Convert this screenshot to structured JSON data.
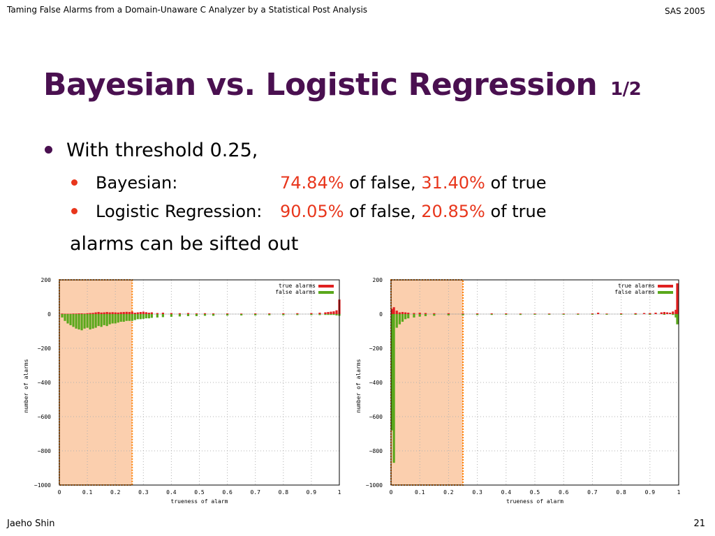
{
  "header": {
    "left": "Taming False Alarms from a Domain-Unaware C Analyzer by a Statistical Post Analysis",
    "right": "SAS 2005"
  },
  "title": {
    "main": "Bayesian vs. Logistic Regression",
    "sub": "1/2"
  },
  "bullets": {
    "main": "With threshold 0.25,",
    "items": [
      {
        "label": "Bayesian:",
        "false_pct": "74.84%",
        "mid": "of false,",
        "true_pct": "31.40%",
        "end": "of true"
      },
      {
        "label": "Logistic Regression:",
        "false_pct": "90.05%",
        "mid": "of false,",
        "true_pct": "20.85%",
        "end": "of true"
      }
    ],
    "tail": "alarms can be sifted out"
  },
  "footer": {
    "left": "Jaeho Shin",
    "right": "21"
  },
  "colors": {
    "title": "#4a1050",
    "accent": "#e8361c",
    "true_bar": "#e02020",
    "false_bar": "#5aa81c",
    "highlight": "#fbcfae",
    "highlight_border": "#ff7f00"
  },
  "chart_data": [
    {
      "type": "bar",
      "xlabel": "trueness of alarm",
      "ylabel": "number of alarms",
      "xlim": [
        0,
        1
      ],
      "ylim": [
        -1000,
        200
      ],
      "xticks": [
        "0",
        "0.1",
        "0.2",
        "0.3",
        "0.4",
        "0.5",
        "0.6",
        "0.7",
        "0.8",
        "0.9",
        "1"
      ],
      "yticks": [
        "200",
        "0",
        "−200",
        "−400",
        "−600",
        "−800",
        "−1000"
      ],
      "highlight_range": [
        0,
        0.26
      ],
      "grid": true,
      "legend": "top-right",
      "series": [
        {
          "name": "true alarms",
          "x": [
            0.01,
            0.02,
            0.03,
            0.04,
            0.05,
            0.06,
            0.07,
            0.08,
            0.09,
            0.1,
            0.11,
            0.12,
            0.13,
            0.14,
            0.15,
            0.16,
            0.17,
            0.18,
            0.19,
            0.2,
            0.21,
            0.22,
            0.23,
            0.24,
            0.25,
            0.26,
            0.27,
            0.28,
            0.29,
            0.3,
            0.31,
            0.32,
            0.33,
            0.35,
            0.37,
            0.4,
            0.43,
            0.46,
            0.49,
            0.52,
            0.55,
            0.6,
            0.65,
            0.7,
            0.75,
            0.8,
            0.85,
            0.9,
            0.93,
            0.95,
            0.96,
            0.97,
            0.98,
            0.99,
            1.0
          ],
          "values": [
            3,
            2,
            2,
            2,
            3,
            3,
            4,
            4,
            3,
            5,
            6,
            7,
            10,
            12,
            9,
            10,
            12,
            10,
            11,
            10,
            9,
            11,
            12,
            13,
            12,
            14,
            8,
            10,
            12,
            14,
            11,
            8,
            10,
            6,
            8,
            6,
            5,
            6,
            4,
            5,
            4,
            4,
            3,
            4,
            4,
            5,
            5,
            6,
            8,
            10,
            12,
            14,
            16,
            22,
            85
          ]
        },
        {
          "name": "false alarms",
          "x": [
            0.01,
            0.02,
            0.03,
            0.04,
            0.05,
            0.06,
            0.07,
            0.08,
            0.09,
            0.1,
            0.11,
            0.12,
            0.13,
            0.14,
            0.15,
            0.16,
            0.17,
            0.18,
            0.19,
            0.2,
            0.21,
            0.22,
            0.23,
            0.24,
            0.25,
            0.26,
            0.27,
            0.28,
            0.29,
            0.3,
            0.31,
            0.32,
            0.33,
            0.35,
            0.37,
            0.4,
            0.43,
            0.46,
            0.49,
            0.52,
            0.55,
            0.6,
            0.65,
            0.7,
            0.75,
            0.8,
            0.85,
            0.9,
            0.93,
            0.95,
            0.96,
            0.97,
            0.98,
            0.99,
            1.0
          ],
          "values": [
            -20,
            -40,
            -55,
            -65,
            -75,
            -85,
            -90,
            -95,
            -85,
            -80,
            -90,
            -85,
            -80,
            -70,
            -75,
            -65,
            -70,
            -60,
            -55,
            -55,
            -50,
            -45,
            -45,
            -40,
            -40,
            -40,
            -35,
            -30,
            -30,
            -28,
            -25,
            -25,
            -22,
            -20,
            -18,
            -16,
            -14,
            -12,
            -12,
            -10,
            -10,
            -9,
            -8,
            -8,
            -7,
            -7,
            -6,
            -6,
            -6,
            -5,
            -5,
            -5,
            -5,
            -8,
            -10
          ]
        }
      ]
    },
    {
      "type": "bar",
      "xlabel": "trueness of alarm",
      "ylabel": "number of alarms",
      "xlim": [
        0,
        1
      ],
      "ylim": [
        -1000,
        200
      ],
      "xticks": [
        "0",
        "0.1",
        "0.2",
        "0.3",
        "0.4",
        "0.5",
        "0.6",
        "0.7",
        "0.8",
        "0.9",
        "1"
      ],
      "yticks": [
        "200",
        "0",
        "−200",
        "−400",
        "−600",
        "−800",
        "−1000"
      ],
      "highlight_range": [
        0,
        0.25
      ],
      "grid": true,
      "legend": "top-right",
      "series": [
        {
          "name": "true alarms",
          "x": [
            0.005,
            0.01,
            0.02,
            0.03,
            0.04,
            0.05,
            0.06,
            0.08,
            0.1,
            0.12,
            0.15,
            0.2,
            0.25,
            0.3,
            0.35,
            0.4,
            0.45,
            0.5,
            0.55,
            0.6,
            0.65,
            0.7,
            0.72,
            0.75,
            0.8,
            0.85,
            0.88,
            0.9,
            0.92,
            0.94,
            0.95,
            0.96,
            0.97,
            0.98,
            0.99,
            0.995
          ],
          "values": [
            30,
            40,
            20,
            10,
            12,
            10,
            8,
            6,
            8,
            6,
            5,
            5,
            4,
            4,
            4,
            4,
            3,
            3,
            3,
            3,
            3,
            4,
            8,
            3,
            4,
            5,
            6,
            6,
            8,
            10,
            12,
            10,
            8,
            15,
            25,
            180
          ]
        },
        {
          "name": "false alarms",
          "x": [
            0.005,
            0.01,
            0.02,
            0.03,
            0.04,
            0.05,
            0.06,
            0.08,
            0.1,
            0.12,
            0.15,
            0.2,
            0.25,
            0.3,
            0.35,
            0.4,
            0.45,
            0.5,
            0.55,
            0.6,
            0.65,
            0.7,
            0.75,
            0.8,
            0.85,
            0.9,
            0.95,
            0.98,
            0.99,
            0.995
          ],
          "values": [
            -680,
            -870,
            -80,
            -60,
            -45,
            -30,
            -25,
            -20,
            -15,
            -12,
            -10,
            -8,
            -7,
            -6,
            -5,
            -5,
            -5,
            -4,
            -4,
            -4,
            -4,
            -4,
            -4,
            -4,
            -4,
            -4,
            -4,
            -5,
            -20,
            -60
          ]
        }
      ]
    }
  ]
}
